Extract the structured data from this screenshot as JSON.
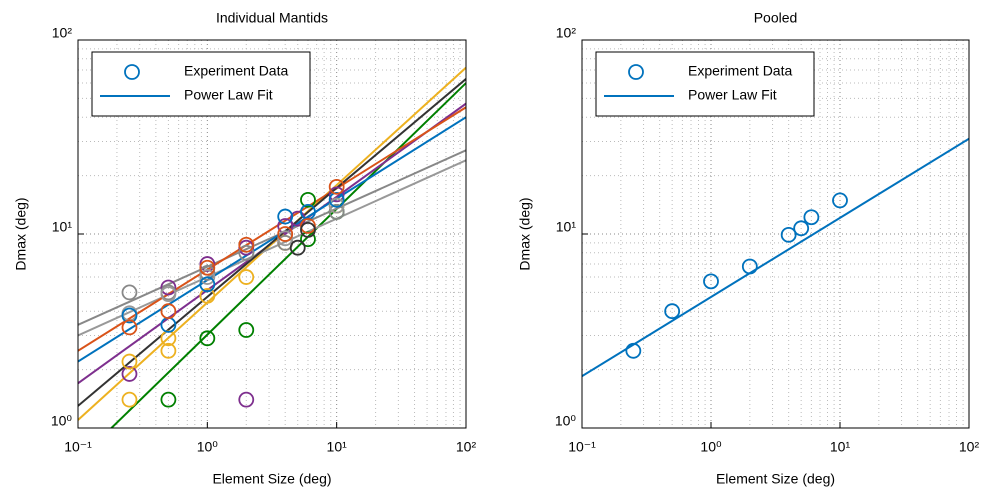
{
  "chart_data": [
    {
      "type": "scatter-fit",
      "title": "Individual Mantids",
      "xlabel": "Element Size (deg)",
      "ylabel": "Dmax (deg)",
      "log_x": true,
      "log_y": true,
      "grid": true,
      "xlim": [
        0.1,
        100
      ],
      "ylim": [
        1,
        100
      ],
      "xticks": [
        {
          "value": 0.1,
          "label": "10⁻¹"
        },
        {
          "value": 1,
          "label": "10⁰"
        },
        {
          "value": 10,
          "label": "10¹"
        },
        {
          "value": 100,
          "label": "10²"
        }
      ],
      "yticks": [
        {
          "value": 1,
          "label": "10⁰"
        },
        {
          "value": 10,
          "label": "10¹"
        },
        {
          "value": 100,
          "label": "10²"
        }
      ],
      "legend": {
        "position": "upper left",
        "color": "#0072bd",
        "entries": [
          "Experiment Data",
          "Power Law Fit"
        ]
      },
      "series": [
        {
          "color": "#008000",
          "x": [
            0.5,
            1,
            2,
            6,
            6,
            10
          ],
          "values": [
            1.4,
            2.9,
            3.2,
            15,
            9.4,
            13
          ],
          "fit_x": [
            0.1,
            100
          ],
          "fit_values": [
            0.68,
            60
          ]
        },
        {
          "color": "#7e2f8e",
          "x": [
            0.25,
            0.5,
            1,
            2,
            2,
            4,
            5,
            10
          ],
          "values": [
            1.9,
            5.3,
            7,
            1.4,
            8.5,
            11,
            12,
            16
          ],
          "fit_x": [
            0.1,
            100
          ],
          "fit_values": [
            1.7,
            47
          ]
        },
        {
          "color": "#edb120",
          "x": [
            0.25,
            0.25,
            0.5,
            0.5,
            1,
            2,
            4,
            10
          ],
          "values": [
            1.4,
            2.2,
            2.5,
            2.9,
            4.8,
            6,
            9,
            14
          ],
          "fit_x": [
            0.1,
            100
          ],
          "fit_values": [
            1.1,
            72
          ]
        },
        {
          "color": "#888888",
          "x": [
            0.25,
            0.5,
            1,
            2,
            4,
            10
          ],
          "values": [
            5,
            5,
            6.3,
            8,
            9,
            13
          ],
          "fit_x": [
            0.1,
            100
          ],
          "fit_values": [
            3.4,
            27
          ]
        },
        {
          "color": "#999999",
          "x": [
            0.25,
            0.5,
            1,
            4,
            10
          ],
          "values": [
            3.9,
            4.9,
            6,
            9.5,
            14
          ],
          "fit_x": [
            0.1,
            100
          ],
          "fit_values": [
            3.0,
            24
          ]
        },
        {
          "color": "#0072bd",
          "x": [
            0.25,
            0.5,
            1,
            4,
            6,
            10
          ],
          "values": [
            3.8,
            3.4,
            5.5,
            12.3,
            13,
            15
          ],
          "fit_x": [
            0.1,
            100
          ],
          "fit_values": [
            2.2,
            40
          ]
        },
        {
          "color": "#d95319",
          "x": [
            0.25,
            0.5,
            1,
            2,
            4,
            6,
            10
          ],
          "values": [
            3.3,
            4,
            6.7,
            8.8,
            10,
            11,
            17.5
          ],
          "fit_x": [
            0.1,
            100
          ],
          "fit_values": [
            2.5,
            45
          ]
        },
        {
          "color": "#333333",
          "x": [
            5,
            6
          ],
          "values": [
            8.5,
            10.5
          ],
          "fit_x": [
            0.1,
            100
          ],
          "fit_values": [
            1.3,
            63
          ]
        }
      ]
    },
    {
      "type": "scatter-fit",
      "title": "Pooled",
      "xlabel": "Element Size (deg)",
      "ylabel": "Dmax (deg)",
      "log_x": true,
      "log_y": true,
      "grid": true,
      "xlim": [
        0.1,
        100
      ],
      "ylim": [
        1,
        100
      ],
      "xticks": [
        {
          "value": 0.1,
          "label": "10⁻¹"
        },
        {
          "value": 1,
          "label": "10⁰"
        },
        {
          "value": 10,
          "label": "10¹"
        },
        {
          "value": 100,
          "label": "10²"
        }
      ],
      "yticks": [
        {
          "value": 1,
          "label": "10⁰"
        },
        {
          "value": 10,
          "label": "10¹"
        },
        {
          "value": 100,
          "label": "10²"
        }
      ],
      "legend": {
        "position": "upper left",
        "color": "#0072bd",
        "entries": [
          "Experiment Data",
          "Power Law Fit"
        ]
      },
      "series": [
        {
          "color": "#0072bd",
          "x": [
            0.25,
            0.5,
            1,
            2,
            4,
            5,
            6,
            10
          ],
          "values": [
            2.5,
            4.0,
            5.7,
            6.8,
            9.9,
            10.7,
            12.2,
            14.9
          ],
          "fit_x": [
            0.1,
            100
          ],
          "fit_values": [
            1.85,
            31
          ]
        }
      ]
    }
  ]
}
